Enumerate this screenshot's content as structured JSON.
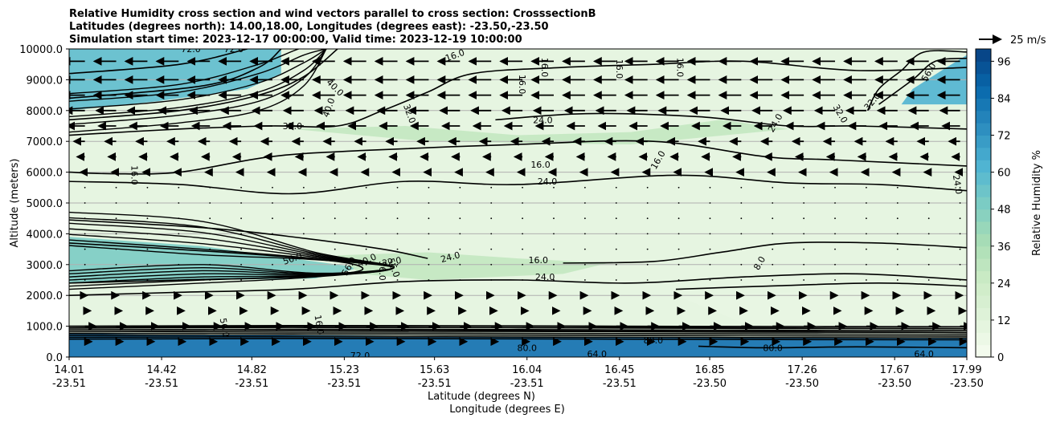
{
  "chart_data": {
    "type": "contour",
    "title_lines": [
      "Relative Humidity cross section and wind vectors parallel to cross section: CrosssectionB",
      "Latitudes (degrees north): 14.00,18.00, Longitudes (degrees east): -23.50,-23.50",
      "Simulation start time: 2023-12-17 00:00:00, Valid time: 2023-12-19 10:00:00"
    ],
    "xlabel_lat": "Latitude (degrees N)",
    "xlabel_lon": "Longitude (degrees E)",
    "ylabel": "Altitude (meters)",
    "colorbar_label": "Relative Humidity %",
    "quiver_key": "25 m/s",
    "xlim": [
      14.01,
      17.99
    ],
    "ylim": [
      0,
      10000
    ],
    "x_ticks": [
      {
        "lat": "14.01",
        "lon": "-23.51",
        "value": 14.01
      },
      {
        "lat": "14.42",
        "lon": "-23.51",
        "value": 14.42
      },
      {
        "lat": "14.82",
        "lon": "-23.51",
        "value": 14.82
      },
      {
        "lat": "15.23",
        "lon": "-23.51",
        "value": 15.23
      },
      {
        "lat": "15.63",
        "lon": "-23.51",
        "value": 15.63
      },
      {
        "lat": "16.04",
        "lon": "-23.51",
        "value": 16.04
      },
      {
        "lat": "16.45",
        "lon": "-23.51",
        "value": 16.45
      },
      {
        "lat": "16.85",
        "lon": "-23.50",
        "value": 16.85
      },
      {
        "lat": "17.26",
        "lon": "-23.50",
        "value": 17.26
      },
      {
        "lat": "17.67",
        "lon": "-23.50",
        "value": 17.67
      },
      {
        "lat": "17.99",
        "lon": "-23.50",
        "value": 17.99
      }
    ],
    "y_ticks": [
      {
        "label": "0.0",
        "value": 0
      },
      {
        "label": "1000.0",
        "value": 1000
      },
      {
        "label": "2000.0",
        "value": 2000
      },
      {
        "label": "3000.0",
        "value": 3000
      },
      {
        "label": "4000.0",
        "value": 4000
      },
      {
        "label": "5000.0",
        "value": 5000
      },
      {
        "label": "6000.0",
        "value": 6000
      },
      {
        "label": "7000.0",
        "value": 7000
      },
      {
        "label": "8000.0",
        "value": 8000
      },
      {
        "label": "9000.0",
        "value": 9000
      },
      {
        "label": "10000.0",
        "value": 10000
      }
    ],
    "colorbar_ticks": [
      {
        "label": "0",
        "value": 0
      },
      {
        "label": "12",
        "value": 12
      },
      {
        "label": "24",
        "value": 24
      },
      {
        "label": "36",
        "value": 36
      },
      {
        "label": "48",
        "value": 48
      },
      {
        "label": "60",
        "value": 60
      },
      {
        "label": "72",
        "value": 72
      },
      {
        "label": "84",
        "value": 84
      },
      {
        "label": "96",
        "value": 96
      }
    ],
    "colorbar_range": [
      0,
      100
    ],
    "colors": [
      "#f7fcf0",
      "#e0f3db",
      "#ccebc5",
      "#a8ddb5",
      "#7bccc4",
      "#4eb3d3",
      "#2b8cbe",
      "#0868ac",
      "#084081"
    ],
    "grid_y": true,
    "rh_regions": [
      {
        "rh": 58,
        "points": [
          [
            14.01,
            8000
          ],
          [
            14.4,
            8300
          ],
          [
            14.8,
            8700
          ],
          [
            14.95,
            9200
          ],
          [
            14.95,
            10000
          ],
          [
            14.01,
            10000
          ]
        ]
      },
      {
        "rh": 50,
        "points": [
          [
            14.01,
            2400
          ],
          [
            14.6,
            2500
          ],
          [
            15.1,
            2550
          ],
          [
            15.3,
            2900
          ],
          [
            15.0,
            3200
          ],
          [
            14.6,
            3600
          ],
          [
            14.01,
            3900
          ]
        ]
      },
      {
        "rh": 85,
        "points": [
          [
            14.01,
            0
          ],
          [
            17.99,
            0
          ],
          [
            17.99,
            600
          ],
          [
            17.0,
            620
          ],
          [
            16.0,
            650
          ],
          [
            15.0,
            700
          ],
          [
            14.01,
            750
          ]
        ]
      },
      {
        "rh": 62,
        "points": [
          [
            17.7,
            8200
          ],
          [
            17.75,
            8700
          ],
          [
            17.9,
            9400
          ],
          [
            17.99,
            9800
          ],
          [
            17.99,
            8200
          ]
        ]
      },
      {
        "rh": 28,
        "points": [
          [
            15.2,
            3300
          ],
          [
            15.6,
            3400
          ],
          [
            16.0,
            3200
          ],
          [
            16.4,
            3050
          ],
          [
            16.2,
            2700
          ],
          [
            15.6,
            2500
          ],
          [
            15.3,
            2700
          ]
        ]
      },
      {
        "rh": 28,
        "points": [
          [
            15.0,
            7400
          ],
          [
            15.5,
            7500
          ],
          [
            16.0,
            7200
          ],
          [
            16.5,
            7300
          ],
          [
            16.9,
            7700
          ],
          [
            17.2,
            7400
          ],
          [
            16.5,
            6900
          ],
          [
            15.6,
            7000
          ]
        ]
      },
      {
        "rh": 8,
        "points": [
          [
            16.7,
            2000
          ],
          [
            17.2,
            2100
          ],
          [
            17.99,
            2300
          ],
          [
            17.99,
            1200
          ],
          [
            17.0,
            1100
          ]
        ]
      }
    ],
    "contours": [
      {
        "level": 16.0,
        "points": [
          [
            14.01,
            6000
          ],
          [
            14.2,
            5950
          ],
          [
            14.5,
            6000
          ],
          [
            14.9,
            6500
          ],
          [
            15.3,
            6700
          ],
          [
            16.0,
            6900
          ],
          [
            16.6,
            7000
          ],
          [
            17.1,
            6500
          ],
          [
            17.4,
            6400
          ],
          [
            17.99,
            6200
          ]
        ]
      },
      {
        "level": 16.0,
        "points": [
          [
            16.2,
            3050
          ],
          [
            16.6,
            3100
          ],
          [
            16.9,
            3400
          ],
          [
            17.2,
            3700
          ],
          [
            17.6,
            3700
          ],
          [
            17.99,
            3550
          ]
        ]
      },
      {
        "level": 24.0,
        "points": [
          [
            14.01,
            5700
          ],
          [
            14.5,
            5600
          ],
          [
            15.0,
            5300
          ],
          [
            15.5,
            5700
          ],
          [
            16.0,
            5600
          ],
          [
            16.7,
            5900
          ],
          [
            17.2,
            5650
          ],
          [
            17.6,
            5600
          ],
          [
            17.99,
            5400
          ]
        ]
      },
      {
        "level": 24.0,
        "points": [
          [
            14.01,
            2000
          ],
          [
            14.5,
            2100
          ],
          [
            15.0,
            2200
          ],
          [
            15.5,
            2450
          ],
          [
            16.0,
            2500
          ],
          [
            16.5,
            2400
          ],
          [
            17.0,
            2600
          ],
          [
            17.5,
            2700
          ],
          [
            17.99,
            2500
          ]
        ]
      },
      {
        "level": 24.0,
        "points": [
          [
            15.9,
            7700
          ],
          [
            16.3,
            7900
          ],
          [
            16.8,
            7800
          ],
          [
            17.2,
            7500
          ],
          [
            17.5,
            7500
          ],
          [
            17.99,
            7400
          ]
        ]
      },
      {
        "level": 32.0,
        "points": [
          [
            14.01,
            7200
          ],
          [
            14.5,
            7400
          ],
          [
            14.9,
            7500
          ],
          [
            15.2,
            7500
          ],
          [
            15.4,
            8000
          ],
          [
            15.6,
            8600
          ],
          [
            15.8,
            9200
          ],
          [
            16.2,
            9400
          ],
          [
            16.6,
            9500
          ],
          [
            17.0,
            9600
          ],
          [
            17.5,
            9300
          ],
          [
            17.99,
            9400
          ]
        ]
      },
      {
        "level": 40.0,
        "points": [
          [
            14.01,
            4450
          ],
          [
            14.6,
            4200
          ],
          [
            15.0,
            3900
          ],
          [
            15.4,
            3500
          ],
          [
            15.6,
            3200
          ]
        ]
      },
      {
        "level": 40.0,
        "points": [
          [
            14.01,
            7700
          ],
          [
            14.5,
            8000
          ],
          [
            14.85,
            8500
          ],
          [
            15.05,
            9100
          ],
          [
            15.2,
            10000
          ]
        ]
      },
      {
        "level": 56.0,
        "points": [
          [
            14.01,
            3700
          ],
          [
            14.7,
            3400
          ],
          [
            15.2,
            3100
          ],
          [
            15.3,
            2800
          ],
          [
            15.0,
            2600
          ],
          [
            14.5,
            2500
          ],
          [
            14.01,
            2400
          ]
        ]
      },
      {
        "level": 56.0,
        "points": [
          [
            14.01,
            8400
          ],
          [
            14.6,
            8800
          ],
          [
            14.85,
            9400
          ],
          [
            14.95,
            10000
          ]
        ]
      },
      {
        "level": 64.0,
        "points": [
          [
            14.01,
            950
          ],
          [
            15.0,
            1000
          ],
          [
            16.0,
            1000
          ],
          [
            17.0,
            950
          ],
          [
            17.99,
            920
          ]
        ]
      },
      {
        "level": 72.0,
        "points": [
          [
            14.01,
            820
          ],
          [
            15.0,
            850
          ],
          [
            16.0,
            850
          ],
          [
            17.0,
            830
          ],
          [
            17.99,
            800
          ]
        ]
      },
      {
        "level": 72.0,
        "points": [
          [
            14.01,
            9200
          ],
          [
            14.5,
            9500
          ],
          [
            14.8,
            10000
          ]
        ]
      },
      {
        "level": 80.0,
        "points": [
          [
            16.8,
            350
          ],
          [
            17.1,
            300
          ],
          [
            17.5,
            330
          ],
          [
            17.99,
            300
          ]
        ]
      },
      {
        "level": 56.0,
        "points": [
          [
            17.6,
            8200
          ],
          [
            17.75,
            9000
          ],
          [
            17.85,
            9600
          ],
          [
            17.99,
            9700
          ]
        ]
      },
      {
        "level": 48.0,
        "points": [
          [
            17.55,
            8000
          ],
          [
            17.6,
            8700
          ],
          [
            17.7,
            9300
          ],
          [
            17.8,
            9900
          ],
          [
            17.99,
            9900
          ]
        ]
      },
      {
        "level": 8.0,
        "points": [
          [
            16.7,
            2200
          ],
          [
            17.1,
            2300
          ],
          [
            17.6,
            2400
          ],
          [
            17.99,
            2300
          ]
        ]
      }
    ],
    "contour_labels": [
      {
        "text": "16.0",
        "x": 15.72,
        "y": 9800,
        "rot": -20
      },
      {
        "text": "16.0",
        "x": 16.02,
        "y": 8850,
        "rot": 90
      },
      {
        "text": "16.0",
        "x": 16.12,
        "y": 9400,
        "rot": 90
      },
      {
        "text": "16.0",
        "x": 16.45,
        "y": 9350,
        "rot": 90
      },
      {
        "text": "16.0",
        "x": 16.72,
        "y": 9400,
        "rot": 90
      },
      {
        "text": "16.0",
        "x": 16.1,
        "y": 6250,
        "rot": 0
      },
      {
        "text": "16.0",
        "x": 16.62,
        "y": 6400,
        "rot": -60
      },
      {
        "text": "16.0",
        "x": 14.3,
        "y": 5900,
        "rot": 90
      },
      {
        "text": "16.0",
        "x": 16.09,
        "y": 3150,
        "rot": 0
      },
      {
        "text": "24.0",
        "x": 16.11,
        "y": 7700,
        "rot": 0
      },
      {
        "text": "24.0",
        "x": 16.13,
        "y": 5700,
        "rot": 0
      },
      {
        "text": "24.0",
        "x": 15.7,
        "y": 3250,
        "rot": -15
      },
      {
        "text": "24.0",
        "x": 16.12,
        "y": 2600,
        "rot": 0
      },
      {
        "text": "24.0",
        "x": 17.14,
        "y": 7600,
        "rot": -60
      },
      {
        "text": "24.0",
        "x": 17.95,
        "y": 5600,
        "rot": 80
      },
      {
        "text": "32.0",
        "x": 15.0,
        "y": 7500,
        "rot": 0
      },
      {
        "text": "32.0",
        "x": 15.52,
        "y": 7900,
        "rot": 70
      },
      {
        "text": "32.0",
        "x": 17.43,
        "y": 7900,
        "rot": 60
      },
      {
        "text": "32.0",
        "x": 17.57,
        "y": 8300,
        "rot": -50
      },
      {
        "text": "32.0",
        "x": 15.44,
        "y": 3100,
        "rot": -10
      },
      {
        "text": "40.0",
        "x": 15.19,
        "y": 8750,
        "rot": 45
      },
      {
        "text": "40.0",
        "x": 15.16,
        "y": 8100,
        "rot": -70
      },
      {
        "text": "40.0",
        "x": 15.33,
        "y": 3150,
        "rot": -25
      },
      {
        "text": "56.0",
        "x": 15.0,
        "y": 3200,
        "rot": -20
      },
      {
        "text": "56.0",
        "x": 15.25,
        "y": 2950,
        "rot": -60
      },
      {
        "text": "56.0",
        "x": 15.4,
        "y": 2800,
        "rot": 90
      },
      {
        "text": "56.0",
        "x": 15.45,
        "y": 2900,
        "rot": 70
      },
      {
        "text": "56.0",
        "x": 17.82,
        "y": 9250,
        "rot": -60
      },
      {
        "text": "72.0",
        "x": 14.55,
        "y": 10000,
        "rot": 0
      },
      {
        "text": "72.0",
        "x": 14.74,
        "y": 10000,
        "rot": 0
      },
      {
        "text": "72.0",
        "x": 15.3,
        "y": 50,
        "rot": 0
      },
      {
        "text": "64.0",
        "x": 16.35,
        "y": 100,
        "rot": 0
      },
      {
        "text": "64.0",
        "x": 17.8,
        "y": 100,
        "rot": 0
      },
      {
        "text": "80.0",
        "x": 16.04,
        "y": 300,
        "rot": 0
      },
      {
        "text": "80.0",
        "x": 17.13,
        "y": 300,
        "rot": 0
      },
      {
        "text": "80.0",
        "x": 16.6,
        "y": 550,
        "rot": 0
      },
      {
        "text": "16.0",
        "x": 15.12,
        "y": 1050,
        "rot": 80
      },
      {
        "text": "56.0",
        "x": 14.7,
        "y": 950,
        "rot": 80
      },
      {
        "text": "8.0",
        "x": 17.07,
        "y": 3050,
        "rot": -60
      }
    ],
    "quiver_rows": [
      {
        "y": 9600,
        "u": -1.0
      },
      {
        "y": 9000,
        "u": -1.0
      },
      {
        "y": 8500,
        "u": -1.0
      },
      {
        "y": 8000,
        "u": -0.9
      },
      {
        "y": 7500,
        "u": -0.8
      },
      {
        "y": 7000,
        "u": -0.5
      },
      {
        "y": 6500,
        "u": -0.35
      },
      {
        "y": 6000,
        "u": -0.2
      },
      {
        "y": 5500,
        "u": -0.05
      },
      {
        "y": 5000,
        "u": -0.02
      },
      {
        "y": 4500,
        "u": 0.0
      },
      {
        "y": 4000,
        "u": 0.0
      },
      {
        "y": 3500,
        "u": 0.02
      },
      {
        "y": 3000,
        "u": 0.0
      },
      {
        "y": 2500,
        "u": 0.05
      },
      {
        "y": 2000,
        "u": 0.1
      },
      {
        "y": 1500,
        "u": 0.25
      },
      {
        "y": 1000,
        "u": 0.5
      },
      {
        "y": 500,
        "u": 0.3
      }
    ]
  }
}
